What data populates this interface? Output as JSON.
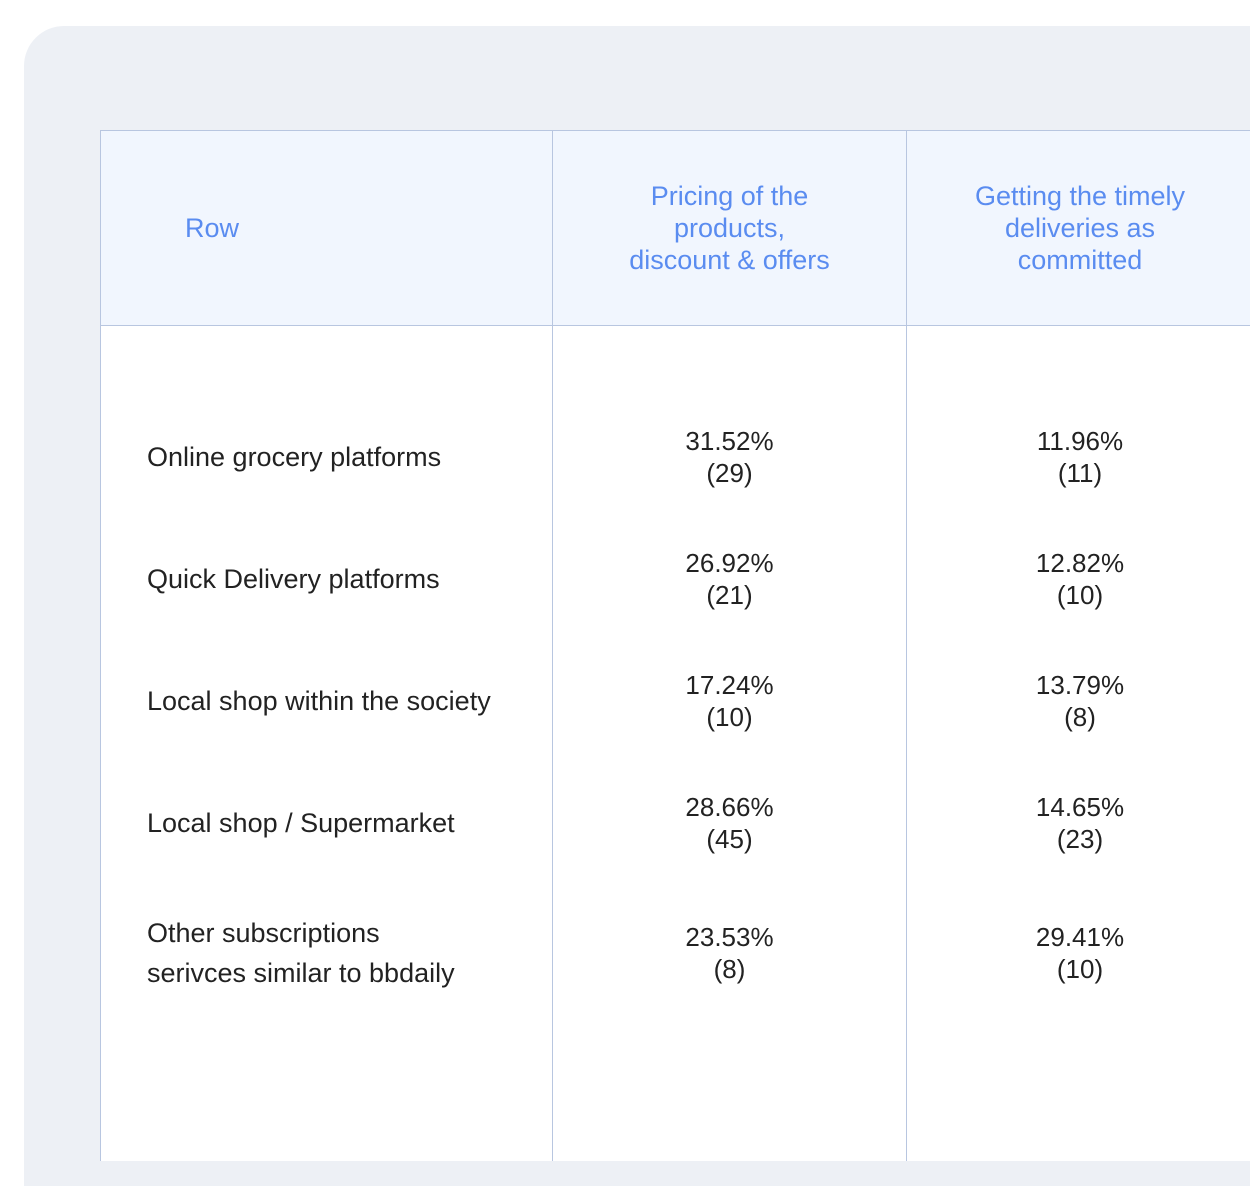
{
  "table": {
    "headers": {
      "row": "Row",
      "col1_lines": [
        "Pricing of the",
        "products,",
        "discount & offers"
      ],
      "col2_lines": [
        "Getting the timely",
        "deliveries as",
        "committed"
      ]
    },
    "rows": [
      {
        "label_lines": [
          "Online grocery platforms"
        ],
        "col1_pct": "31.52%",
        "col1_count": "(29)",
        "col2_pct": "11.96%",
        "col2_count": "(11)"
      },
      {
        "label_lines": [
          "Quick Delivery platforms"
        ],
        "col1_pct": "26.92%",
        "col1_count": "(21)",
        "col2_pct": "12.82%",
        "col2_count": "(10)"
      },
      {
        "label_lines": [
          "Local shop within  the society"
        ],
        "col1_pct": "17.24%",
        "col1_count": "(10)",
        "col2_pct": "13.79%",
        "col2_count": "(8)"
      },
      {
        "label_lines": [
          "Local shop / Supermarket"
        ],
        "col1_pct": "28.66%",
        "col1_count": "(45)",
        "col2_pct": "14.65%",
        "col2_count": "(23)"
      },
      {
        "label_lines": [
          "Other subscriptions",
          "serivces similar to bbdaily"
        ],
        "col1_pct": "23.53%",
        "col1_count": "(8)",
        "col2_pct": "29.41%",
        "col2_count": "(10)"
      }
    ]
  }
}
